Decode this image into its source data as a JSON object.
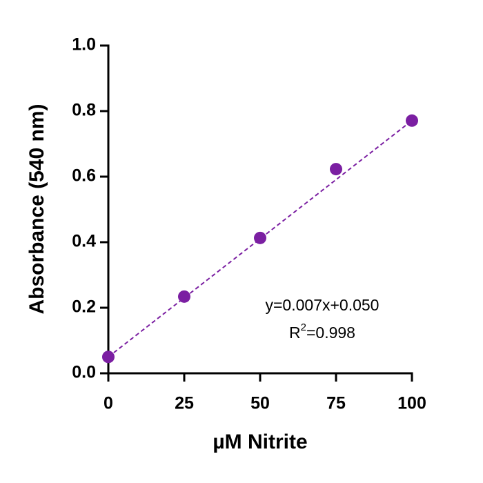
{
  "chart_data": {
    "type": "scatter",
    "x_label": "µM Nitrite",
    "y_label": "Absorbance (540 nm)",
    "series": [
      {
        "color": "#7b1fa2",
        "x": [
          0,
          25,
          50,
          75,
          100
        ],
        "values": [
          0.05,
          0.234,
          0.413,
          0.623,
          0.771
        ]
      }
    ],
    "trendline": {
      "color": "#7b1fa2",
      "x": [
        0,
        100
      ],
      "values": [
        0.05,
        0.771
      ]
    },
    "annotation": {
      "equation": "y=0.007x+0.050",
      "r2_base": "R",
      "r2_sup": "2",
      "r2_rest": "=0.998"
    },
    "xlim": [
      0,
      100
    ],
    "xticks": [
      0,
      25,
      50,
      75,
      100
    ],
    "ylim": [
      0,
      1
    ],
    "yticks": [
      {
        "value": 0,
        "label": "0.0"
      },
      {
        "value": 0.2,
        "label": "0.2"
      },
      {
        "value": 0.4,
        "label": "0.4"
      },
      {
        "value": 0.6,
        "label": "0.6"
      },
      {
        "value": 0.8,
        "label": "0.8"
      },
      {
        "value": 1,
        "label": "1.0"
      }
    ]
  }
}
